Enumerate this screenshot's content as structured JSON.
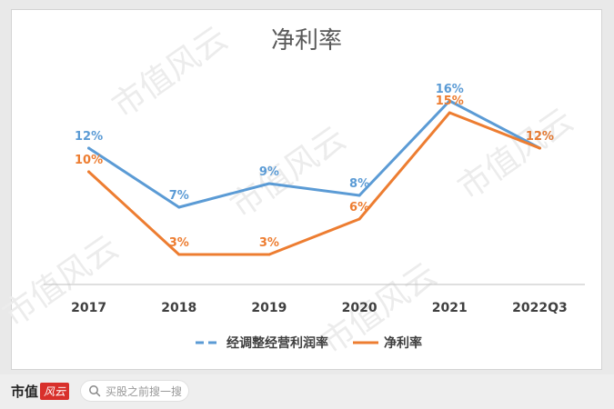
{
  "watermark_text": "市值风云",
  "footer": {
    "brand_name": "市值",
    "brand_badge": "风云",
    "search_placeholder": "买股之前搜一搜"
  },
  "colors": {
    "series1": "#5b9bd5",
    "series2": "#ed7d31",
    "axis": "#bfbfbf",
    "title": "#595959",
    "tick": "#404040"
  },
  "chart_data": {
    "type": "line",
    "title": "净利率",
    "xlabel": "",
    "ylabel": "",
    "ylim": [
      0,
      20
    ],
    "grid": false,
    "legend_position": "bottom",
    "categories": [
      "2017",
      "2018",
      "2019",
      "2020",
      "2021",
      "2022Q3"
    ],
    "series": [
      {
        "name": "经调整经营利润率",
        "values": [
          12,
          7,
          9,
          8,
          16,
          12
        ],
        "labels": [
          "12%",
          "7%",
          "9%",
          "8%",
          "16%",
          "12%"
        ],
        "dash": true
      },
      {
        "name": "净利率",
        "values": [
          10,
          3,
          3,
          6,
          15,
          12
        ],
        "labels": [
          "10%",
          "3%",
          "3%",
          "6%",
          "15%",
          "12%"
        ],
        "dash": false
      }
    ]
  }
}
